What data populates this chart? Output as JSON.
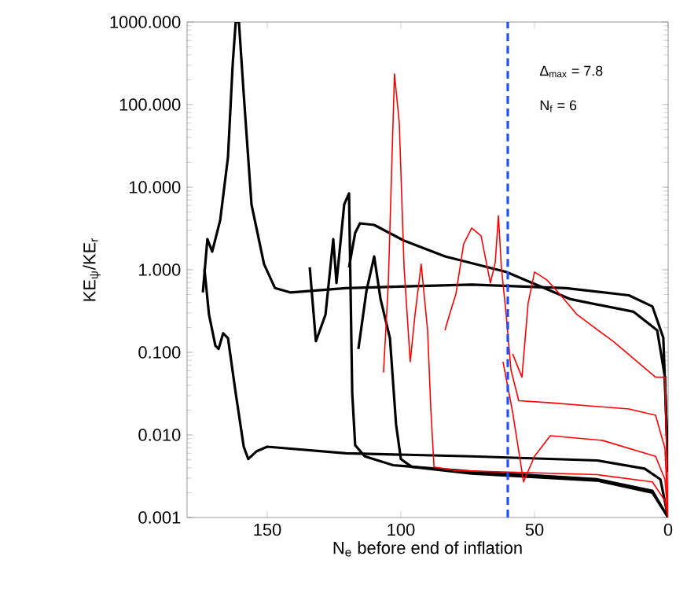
{
  "chart_data": {
    "type": "line",
    "xlabel": "N$_{e}$ before end of inflation",
    "ylabel": "KE$_{ψ}$/KE$_{r}$",
    "log": "y",
    "xlim": [
      180,
      0
    ],
    "xticks": [
      150,
      100,
      50,
      0
    ],
    "ylim": [
      0.001,
      1000
    ],
    "yticks": [
      {
        "value": 0.001,
        "label": "0.001"
      },
      {
        "value": 0.01,
        "label": "0.010"
      },
      {
        "value": 0.1,
        "label": "0.100"
      },
      {
        "value": 1,
        "label": "1.000"
      },
      {
        "value": 10,
        "label": "10.000"
      },
      {
        "value": 100,
        "label": "100.000"
      },
      {
        "value": 1000,
        "label": "1000.000"
      }
    ],
    "annotations": [
      "Δ$_{max}$ = 7.8",
      "N$_{f}$ = 6"
    ],
    "ref_lines": [
      {
        "axis": "x",
        "value": 60,
        "color": "#1f4fff",
        "line_style": "dashed"
      }
    ],
    "series": [
      {
        "color": "#000000",
        "x": [
          174.1,
          172.4,
          170.6,
          167.6,
          164.7,
          162.9,
          161.8,
          160.6,
          158.8,
          155.9,
          151.2,
          147.1,
          141.2,
          120.6,
          73.5,
          38.2,
          14.7,
          5.9,
          1.8,
          0
        ],
        "values": [
          0.53,
          2.35,
          1.66,
          4.0,
          23,
          320,
          1000,
          1000,
          133,
          6.2,
          1.17,
          0.6,
          0.53,
          0.6,
          0.66,
          0.6,
          0.49,
          0.36,
          0.15,
          0.0036
        ]
      },
      {
        "color": "#000000",
        "x": [
          173.5,
          171.8,
          169.4,
          168.2,
          166.5,
          164.7,
          161.8,
          158.8,
          157.1,
          154.1,
          150,
          120.6,
          73.5,
          26.5,
          8.8,
          2.9,
          0
        ],
        "values": [
          1.02,
          0.287,
          0.12,
          0.11,
          0.17,
          0.149,
          0.032,
          0.0072,
          0.0051,
          0.0063,
          0.0072,
          0.006,
          0.0055,
          0.0049,
          0.0039,
          0.0029,
          0.001
        ]
      },
      {
        "color": "#000000",
        "x": [
          134.1,
          131.8,
          128.2,
          125.3,
          124.1,
          121.2,
          119.4,
          118.2,
          117.1,
          113.5,
          102.9,
          73.5,
          26.5,
          5.9,
          0
        ],
        "values": [
          1.07,
          0.136,
          0.287,
          2.35,
          0.69,
          6.2,
          8.4,
          0.032,
          0.0075,
          0.0055,
          0.0043,
          0.0036,
          0.0029,
          0.0021,
          0.001
        ]
      },
      {
        "color": "#000000",
        "x": [
          119.4,
          117.1,
          115.3,
          110,
          98.8,
          83.5,
          60.6,
          36.5,
          12.9,
          4.1,
          1.2,
          0
        ],
        "values": [
          1.07,
          2.8,
          3.65,
          3.49,
          2.25,
          1.45,
          0.94,
          0.44,
          0.31,
          0.185,
          0.05,
          0.0036
        ]
      },
      {
        "color": "#000000",
        "x": [
          115.9,
          112.9,
          110,
          107.6,
          104.1,
          101.8,
          100,
          95.9,
          73.5,
          26.5,
          5.9,
          0
        ],
        "values": [
          0.11,
          0.55,
          1.45,
          0.44,
          0.149,
          0.0134,
          0.0051,
          0.0041,
          0.0034,
          0.0028,
          0.002,
          0.001
        ]
      },
      {
        "color": "#ff0000",
        "x": [
          106.5,
          104.7,
          102.4,
          100.6,
          98.8,
          96.5,
          94.7,
          92.4,
          90,
          88.8,
          87.6,
          79.4,
          26.5,
          5.9,
          1.2,
          0
        ],
        "values": [
          0.057,
          0.69,
          235,
          60,
          1.07,
          0.077,
          0.287,
          1.17,
          0.185,
          0.0206,
          0.0041,
          0.0037,
          0.0033,
          0.0027,
          0.0016,
          0.001
        ]
      },
      {
        "color": "#ff0000",
        "x": [
          83.5,
          81.8,
          79.4,
          76.5,
          73.5,
          70,
          66.5,
          64.7,
          63.5,
          62.4,
          60.6,
          58.8,
          55.9,
          44.1,
          14.7,
          4.7,
          1.2,
          0
        ],
        "values": [
          0.185,
          0.287,
          0.51,
          2.06,
          3.2,
          2.57,
          0.69,
          1.22,
          4.5,
          1.07,
          0.287,
          0.061,
          0.026,
          0.0245,
          0.0206,
          0.0173,
          0.0069,
          0.001
        ]
      },
      {
        "color": "#ff0000",
        "x": [
          58.2,
          54.7,
          52.4,
          50,
          45.3,
          40.6,
          34.1,
          20.6,
          4.7,
          1.2,
          0
        ],
        "values": [
          0.096,
          0.05,
          0.39,
          0.94,
          0.75,
          0.51,
          0.287,
          0.136,
          0.05,
          0.05,
          0.001
        ]
      },
      {
        "color": "#ff0000",
        "x": [
          61.8,
          58.2,
          54.1,
          50,
          44.1,
          24.7,
          4.7,
          1.2,
          0
        ],
        "values": [
          0.077,
          0.019,
          0.0027,
          0.0055,
          0.0098,
          0.0086,
          0.0055,
          0.0029,
          0.001
        ]
      }
    ]
  }
}
